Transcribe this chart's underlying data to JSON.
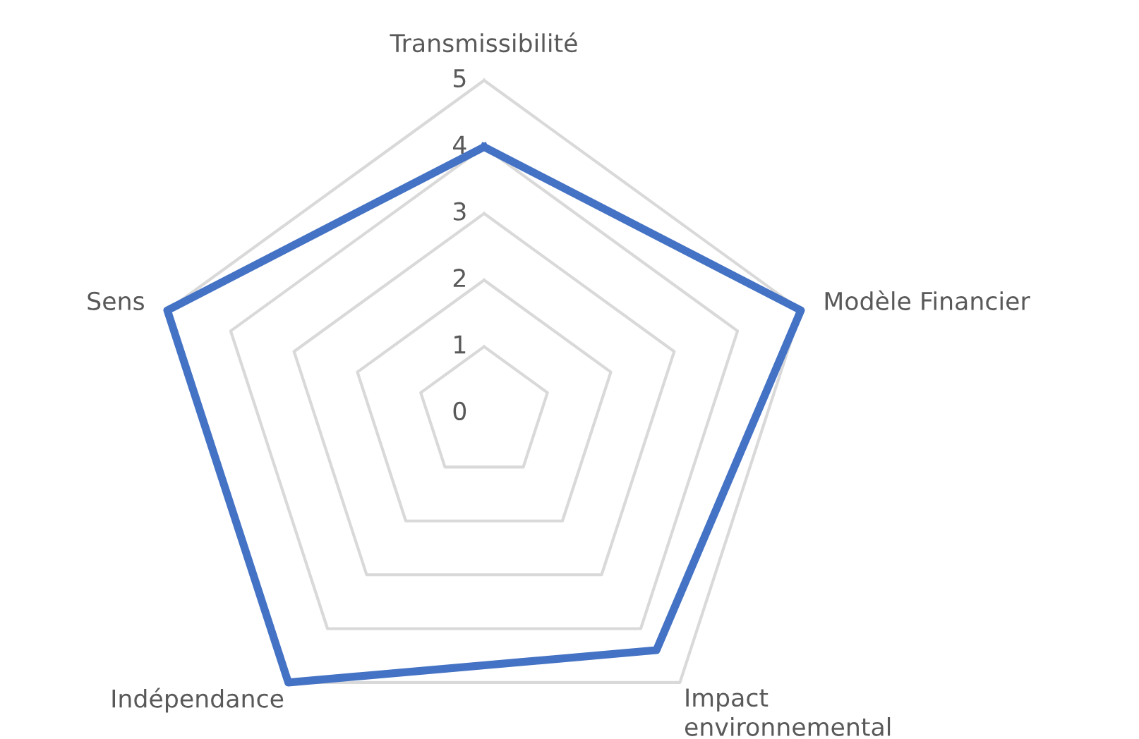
{
  "chart_data": {
    "type": "radar",
    "categories": [
      "Transmissibilité",
      "Modèle Financier",
      "Impact\nenvironnemental",
      "Indépendance",
      "Sens"
    ],
    "series": [
      {
        "color": "#4472c4",
        "values": [
          4,
          5,
          4.4,
          5,
          5
        ]
      }
    ],
    "ylim": [
      0,
      5
    ],
    "yticks": [
      0,
      1,
      2,
      3,
      4,
      5
    ],
    "grid": true,
    "marker": "none",
    "line_style": "solid"
  }
}
